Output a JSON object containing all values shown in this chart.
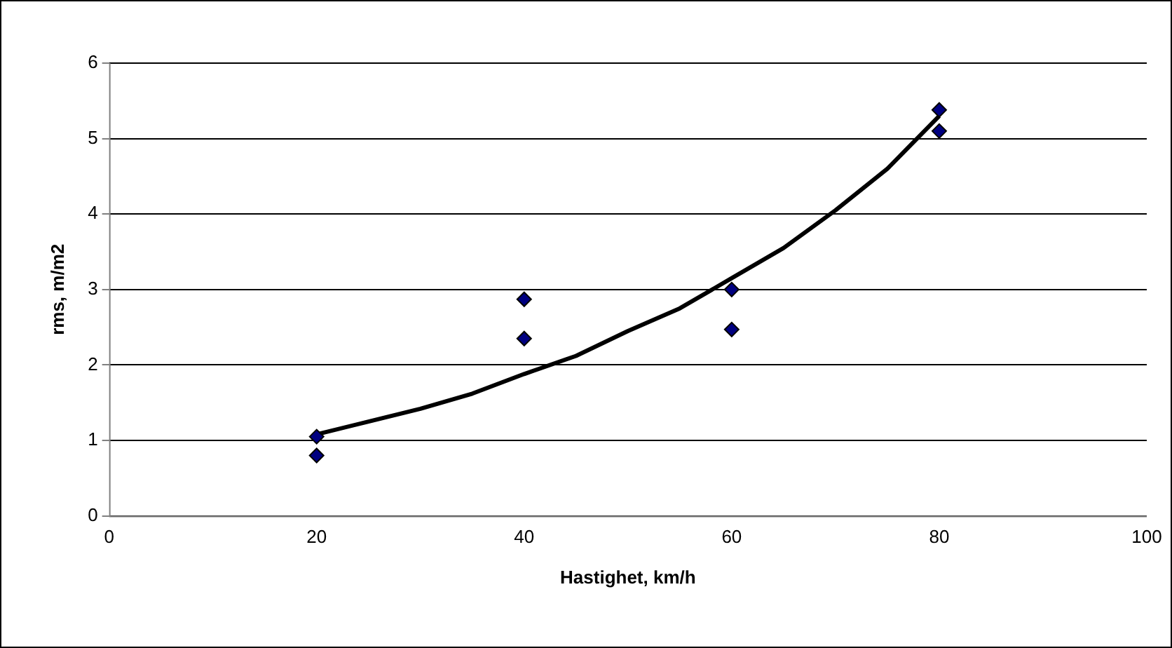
{
  "chart_data": {
    "type": "scatter",
    "xlabel": "Hastighet, km/h",
    "ylabel": "rms, m/m2",
    "xlim": [
      0,
      100
    ],
    "xticks": [
      0,
      20,
      40,
      60,
      80,
      100
    ],
    "ylim": [
      0,
      6
    ],
    "yticks": [
      0,
      1,
      2,
      3,
      4,
      5,
      6
    ],
    "grid": "y",
    "legend": false,
    "marker": "diamond",
    "series": [
      {
        "color": "#000080",
        "x": [
          20,
          20,
          40,
          40,
          60,
          60,
          80,
          80
        ],
        "values": [
          1.05,
          0.8,
          2.87,
          2.35,
          3.0,
          2.47,
          5.38,
          5.1
        ]
      },
      {
        "type": "line",
        "color": "#000000",
        "marker": "none",
        "x": [
          20,
          25,
          30,
          35,
          40,
          45,
          50,
          55,
          60,
          65,
          70,
          75,
          80
        ],
        "values": [
          1.08,
          1.25,
          1.42,
          1.62,
          1.88,
          2.12,
          2.45,
          2.75,
          3.15,
          3.55,
          4.05,
          4.6,
          5.3
        ]
      }
    ]
  }
}
